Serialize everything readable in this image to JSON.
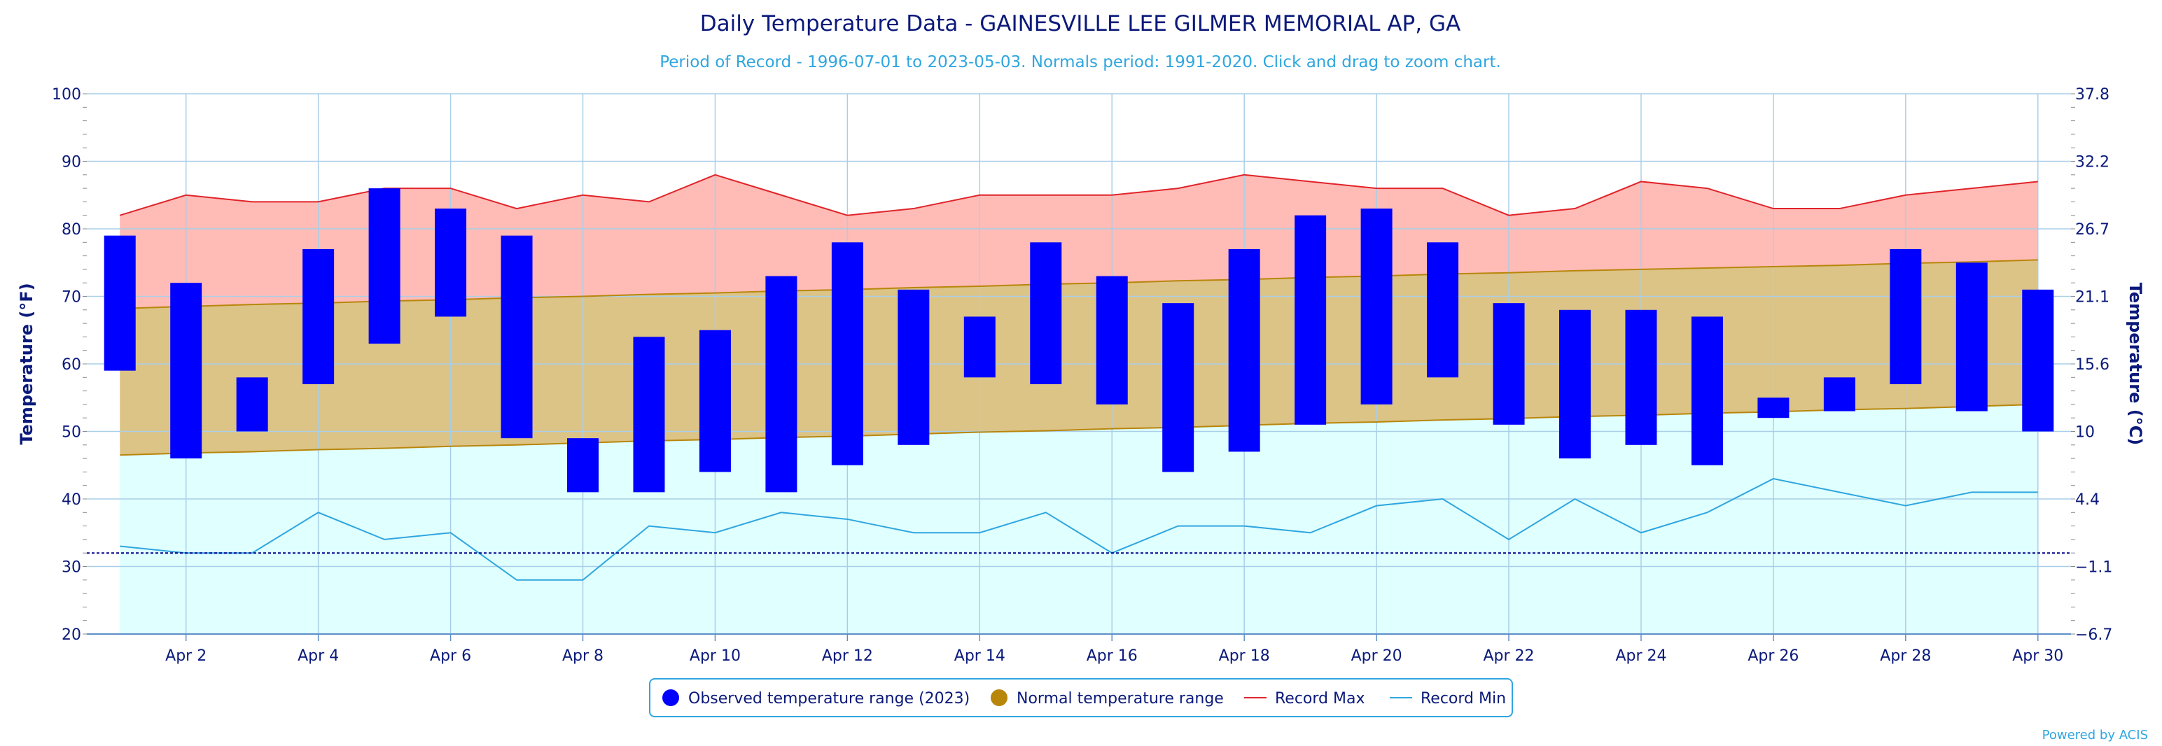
{
  "chart_data": {
    "type": "bar",
    "title": "Daily Temperature Data - GAINESVILLE LEE GILMER MEMORIAL AP, GA",
    "subtitle": "Period of Record - 1996-07-01 to 2023-05-03. Normals period: 1991-2020. Click and drag to zoom chart.",
    "ylabel_left": "Temperature (°F)",
    "ylabel_right": "Temperature (°C)",
    "ylim": [
      20,
      100
    ],
    "y_ticks": [
      "20",
      "30",
      "40",
      "50",
      "60",
      "70",
      "80",
      "90",
      "100"
    ],
    "y_right_ticks": [
      "−6.7",
      "−1.1",
      "4.4",
      "10",
      "15.6",
      "21.1",
      "26.7",
      "32.2",
      "37.8"
    ],
    "x_days": [
      1,
      30
    ],
    "x_tick_labels": [
      "Apr 2",
      "Apr 4",
      "Apr 6",
      "Apr 8",
      "Apr 10",
      "Apr 12",
      "Apr 14",
      "Apr 16",
      "Apr 18",
      "Apr 20",
      "Apr 22",
      "Apr 24",
      "Apr 26",
      "Apr 28",
      "Apr 30"
    ],
    "freezing_line": 32,
    "grid": true,
    "legend_position": "bottom-center",
    "legend": [
      "Observed temperature range (2023)",
      "Normal temperature range",
      "Record Max",
      "Record Min"
    ],
    "colors": {
      "observed": "#0000ff",
      "normal_fill": "#dcc386",
      "normal_line": "#b8860b",
      "normal_legend": "#b8860b",
      "record_max_fill": "#ffbbb6",
      "record_max_line": "#e0242a",
      "record_min_fill": "#e0ffff",
      "record_min_line": "#2fa6df",
      "freezing": "#00008b",
      "grid": "#a9cfe8"
    },
    "observed": [
      {
        "day": 1,
        "min": 59,
        "max": 79
      },
      {
        "day": 2,
        "min": 46,
        "max": 72
      },
      {
        "day": 3,
        "min": 50,
        "max": 58
      },
      {
        "day": 4,
        "min": 57,
        "max": 77
      },
      {
        "day": 5,
        "min": 63,
        "max": 86
      },
      {
        "day": 6,
        "min": 67,
        "max": 83
      },
      {
        "day": 7,
        "min": 49,
        "max": 79
      },
      {
        "day": 8,
        "min": 41,
        "max": 49
      },
      {
        "day": 9,
        "min": 41,
        "max": 64
      },
      {
        "day": 10,
        "min": 44,
        "max": 65
      },
      {
        "day": 11,
        "min": 41,
        "max": 73
      },
      {
        "day": 12,
        "min": 45,
        "max": 78
      },
      {
        "day": 13,
        "min": 48,
        "max": 71
      },
      {
        "day": 14,
        "min": 58,
        "max": 67
      },
      {
        "day": 15,
        "min": 57,
        "max": 78
      },
      {
        "day": 16,
        "min": 54,
        "max": 73
      },
      {
        "day": 17,
        "min": 44,
        "max": 69
      },
      {
        "day": 18,
        "min": 47,
        "max": 77
      },
      {
        "day": 19,
        "min": 51,
        "max": 82
      },
      {
        "day": 20,
        "min": 54,
        "max": 83
      },
      {
        "day": 21,
        "min": 58,
        "max": 78
      },
      {
        "day": 22,
        "min": 51,
        "max": 69
      },
      {
        "day": 23,
        "min": 46,
        "max": 68
      },
      {
        "day": 24,
        "min": 48,
        "max": 68
      },
      {
        "day": 25,
        "min": 45,
        "max": 67
      },
      {
        "day": 26,
        "min": 52,
        "max": 55
      },
      {
        "day": 27,
        "min": 53,
        "max": 58
      },
      {
        "day": 28,
        "min": 57,
        "max": 77
      },
      {
        "day": 29,
        "min": 53,
        "max": 75
      },
      {
        "day": 30,
        "min": 50,
        "max": 71
      }
    ],
    "normal_max": [
      68.2,
      68.5,
      68.8,
      69.0,
      69.3,
      69.5,
      69.8,
      70.0,
      70.3,
      70.5,
      70.8,
      71.0,
      71.3,
      71.5,
      71.8,
      72.0,
      72.3,
      72.5,
      72.8,
      73.0,
      73.3,
      73.5,
      73.8,
      74.0,
      74.2,
      74.4,
      74.6,
      74.9,
      75.1,
      75.4
    ],
    "normal_min": [
      46.5,
      46.8,
      47.0,
      47.3,
      47.5,
      47.8,
      48.0,
      48.3,
      48.6,
      48.8,
      49.1,
      49.3,
      49.6,
      49.9,
      50.1,
      50.4,
      50.6,
      50.9,
      51.2,
      51.4,
      51.7,
      51.9,
      52.2,
      52.4,
      52.7,
      52.9,
      53.2,
      53.4,
      53.7,
      54.0
    ],
    "record_max": [
      82,
      85,
      84,
      84,
      86,
      86,
      83,
      85,
      84,
      88,
      85,
      82,
      83,
      85,
      85,
      85,
      86,
      88,
      87,
      86,
      86,
      82,
      83,
      87,
      86,
      83,
      83,
      85,
      86,
      87
    ],
    "record_min": [
      33,
      32,
      32,
      38,
      34,
      35,
      28,
      28,
      36,
      35,
      38,
      37,
      35,
      35,
      38,
      32,
      36,
      36,
      35,
      39,
      40,
      34,
      40,
      35,
      38,
      43,
      41,
      39,
      41,
      41
    ]
  },
  "credit": "Powered by ACIS"
}
